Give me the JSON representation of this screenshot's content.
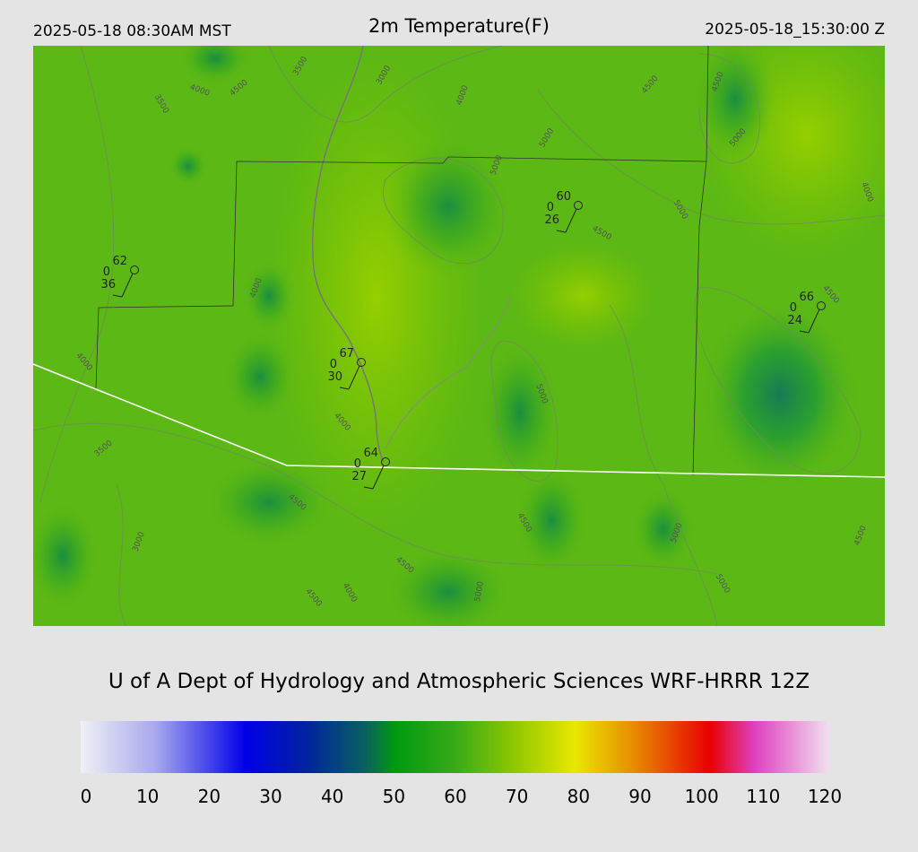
{
  "header": {
    "local_time": "2025-05-18 08:30AM MST",
    "title": "2m Temperature(F)",
    "utc_time": "2025-05-18_15:30:00 Z"
  },
  "stations": [
    {
      "temperature": 62,
      "wind": 0,
      "dewpoint": 36
    },
    {
      "temperature": 60,
      "wind": 0,
      "dewpoint": 26
    },
    {
      "temperature": 66,
      "wind": 0,
      "dewpoint": 24
    },
    {
      "temperature": 67,
      "wind": 0,
      "dewpoint": 30
    },
    {
      "temperature": 64,
      "wind": 0,
      "dewpoint": 27
    }
  ],
  "contour_labels": [
    3500,
    4000,
    4500,
    3000,
    3500,
    4000,
    4500,
    4500,
    5000,
    5000,
    5000,
    4000,
    5000,
    4500,
    4000,
    4000,
    4000,
    5000,
    3500,
    4500,
    3000,
    4500,
    4500,
    4000,
    5000,
    4500,
    5000,
    5000,
    4500,
    4500
  ],
  "credit": "U of A Dept of Hydrology and Atmospheric Sciences WRF-HRRR 12Z",
  "colorbar": {
    "ticks": [
      0,
      10,
      20,
      30,
      40,
      50,
      60,
      70,
      80,
      90,
      100,
      110,
      120
    ]
  }
}
